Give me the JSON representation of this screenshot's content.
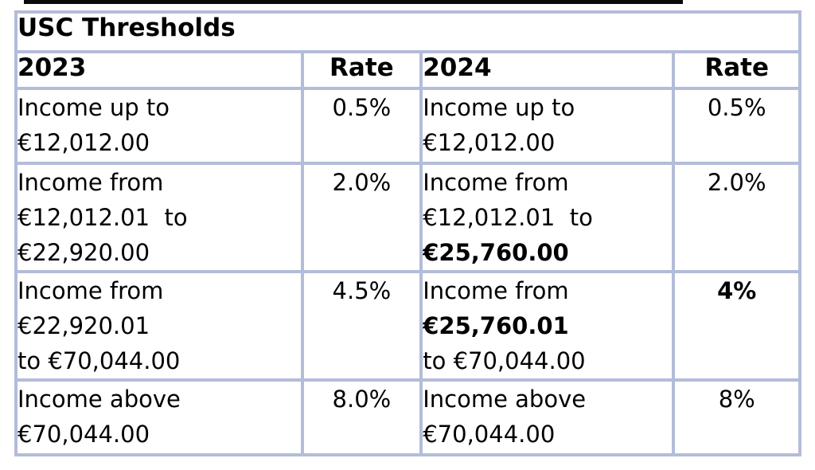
{
  "title": "USC Thresholds",
  "columns": {
    "year_left": "2023",
    "rate_left": "Rate",
    "year_right": "2024",
    "rate_right": "Rate"
  },
  "table": {
    "rows": [
      {
        "y2023": [
          "Income up to",
          "€12,012.00"
        ],
        "rate2023": "0.5%",
        "y2024": [
          "Income up to",
          "€12,012.00"
        ],
        "rate2024": "0.5%"
      },
      {
        "y2023": [
          "Income from",
          "€12,012.01  to",
          "€22,920.00"
        ],
        "rate2023": "2.0%",
        "y2024": [
          "Income from",
          "€12,012.01  to",
          "€25,760.00"
        ],
        "rate2024": "2.0%"
      },
      {
        "y2023": [
          "Income from",
          "€22,920.01",
          "to €70,044.00"
        ],
        "rate2023": "4.5%",
        "y2024": [
          "Income from",
          "€25,760.01",
          "to €70,044.00"
        ],
        "rate2024": "4%"
      },
      {
        "y2023": [
          "Income above",
          "€70,044.00"
        ],
        "rate2023": "8.0%",
        "y2024": [
          "Income above",
          "€70,044.00"
        ],
        "rate2024": "8%"
      }
    ]
  },
  "colors": {
    "border": "#b3bdd9",
    "top_rule": "#0a0a0a",
    "text": "#000000",
    "background": "#ffffff"
  }
}
